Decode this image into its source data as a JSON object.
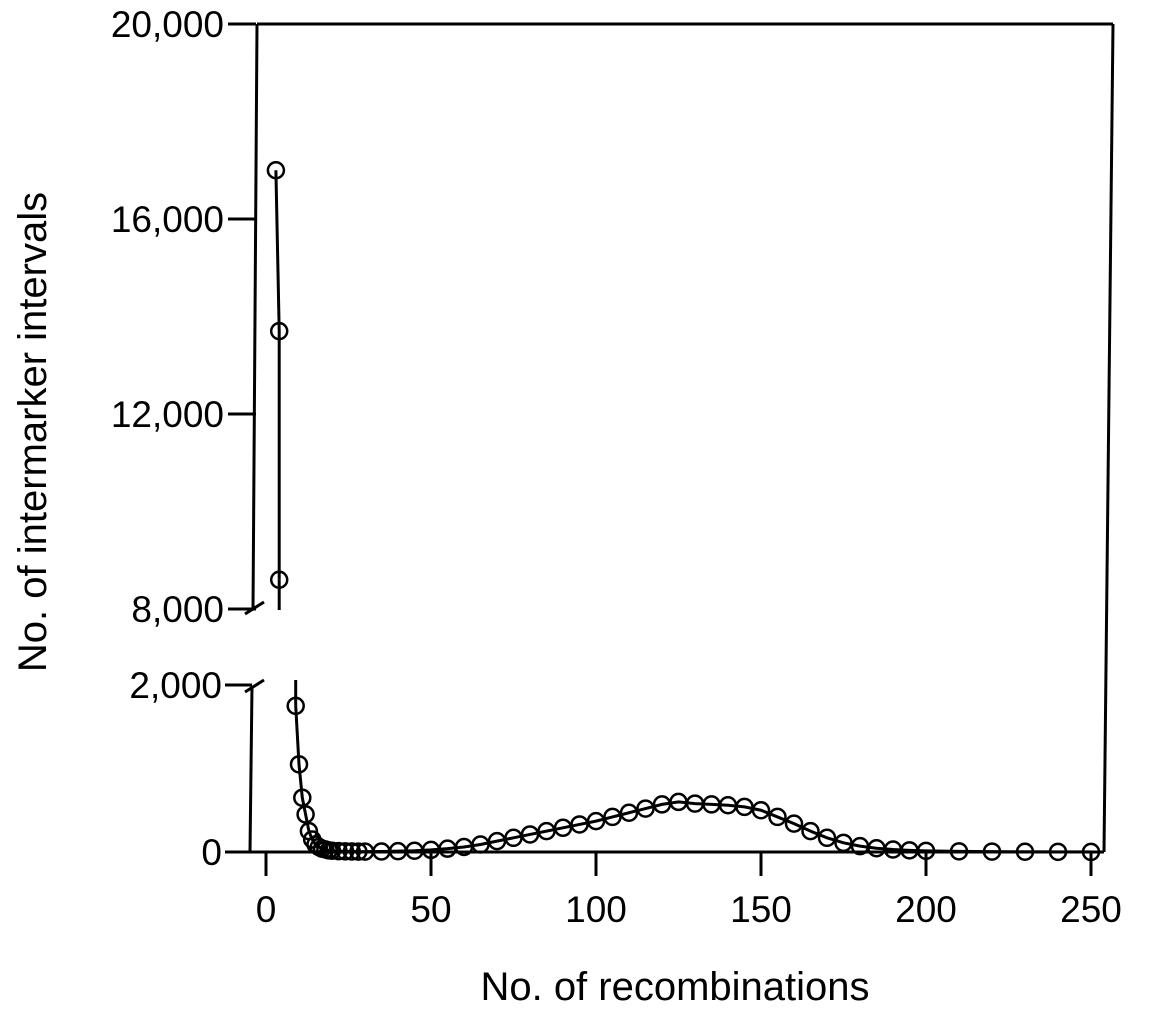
{
  "chart_data": {
    "type": "scatter",
    "xlabel": "No. of recombinations",
    "ylabel": "No. of intermarker intervals",
    "xlim": [
      0,
      250
    ],
    "x_ticks": [
      "0",
      "50",
      "100",
      "150",
      "200",
      "250"
    ],
    "y_ticks_lower": [
      "0",
      "2,000"
    ],
    "y_ticks_upper": [
      "8,000",
      "12,000",
      "16,000",
      "20,000"
    ],
    "y_axis_break": {
      "lower_range": [
        0,
        2000
      ],
      "upper_range": [
        8000,
        20000
      ]
    },
    "grid": false,
    "legend": false,
    "series_upper": {
      "x": [
        3,
        4,
        4
      ],
      "y": [
        17000,
        13700,
        8600
      ]
    },
    "series_lower": {
      "x": [
        9,
        10,
        11,
        12,
        13,
        14,
        15,
        16,
        17,
        18,
        19,
        20,
        22,
        24,
        26,
        28,
        30,
        35,
        40,
        45,
        50,
        55,
        60,
        65,
        70,
        75,
        80,
        85,
        90,
        95,
        100,
        105,
        110,
        115,
        120,
        125,
        130,
        135,
        140,
        145,
        150,
        155,
        160,
        165,
        170,
        175,
        180,
        185,
        190,
        195,
        200,
        210,
        220,
        230,
        240,
        250
      ],
      "y": [
        1750,
        1050,
        650,
        450,
        250,
        150,
        90,
        60,
        40,
        30,
        20,
        15,
        10,
        8,
        6,
        5,
        5,
        6,
        10,
        15,
        25,
        40,
        60,
        90,
        130,
        170,
        210,
        250,
        290,
        330,
        370,
        420,
        470,
        520,
        570,
        600,
        580,
        570,
        560,
        540,
        500,
        420,
        340,
        250,
        170,
        110,
        70,
        45,
        30,
        20,
        14,
        8,
        5,
        3,
        2,
        1
      ]
    }
  }
}
